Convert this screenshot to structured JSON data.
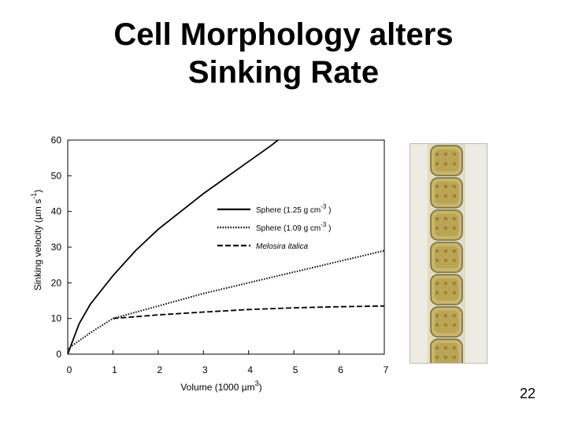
{
  "slide": {
    "title_line1": "Cell Morphology alters",
    "title_line2": "Sinking Rate",
    "page_number": "22"
  },
  "chart_data": {
    "type": "line",
    "xlabel": "Volume (1000 µm3)",
    "ylabel": "Sinking velocity (µm s-1)",
    "xlim": [
      0,
      7
    ],
    "ylim": [
      0,
      60
    ],
    "xticks": [
      0,
      1,
      2,
      3,
      4,
      5,
      6,
      7
    ],
    "yticks": [
      0,
      10,
      20,
      30,
      40,
      50,
      60
    ],
    "grid": false,
    "legend": "center-right",
    "series": [
      {
        "name": "Sphere (1.25 g cm-3 )",
        "style": "solid",
        "x": [
          0,
          0.25,
          0.5,
          1,
          1.5,
          2,
          2.5,
          3,
          3.5,
          4,
          4.5,
          4.8
        ],
        "y": [
          0,
          8.5,
          14,
          22,
          29,
          35,
          40,
          45,
          49.5,
          54,
          58.5,
          61.5
        ]
      },
      {
        "name": "Sphere (1.09 g cm-3 )",
        "style": "dotted",
        "x": [
          0,
          0.5,
          1,
          2,
          3,
          4,
          5,
          6,
          7
        ],
        "y": [
          1.5,
          6,
          10,
          13.5,
          17,
          20,
          23,
          26,
          29
        ]
      },
      {
        "name": "Melosira italica",
        "style": "dashed",
        "x": [
          1,
          2,
          3,
          4,
          5,
          6,
          7
        ],
        "y": [
          10,
          11,
          11.8,
          12.5,
          13,
          13.3,
          13.5
        ]
      }
    ]
  }
}
